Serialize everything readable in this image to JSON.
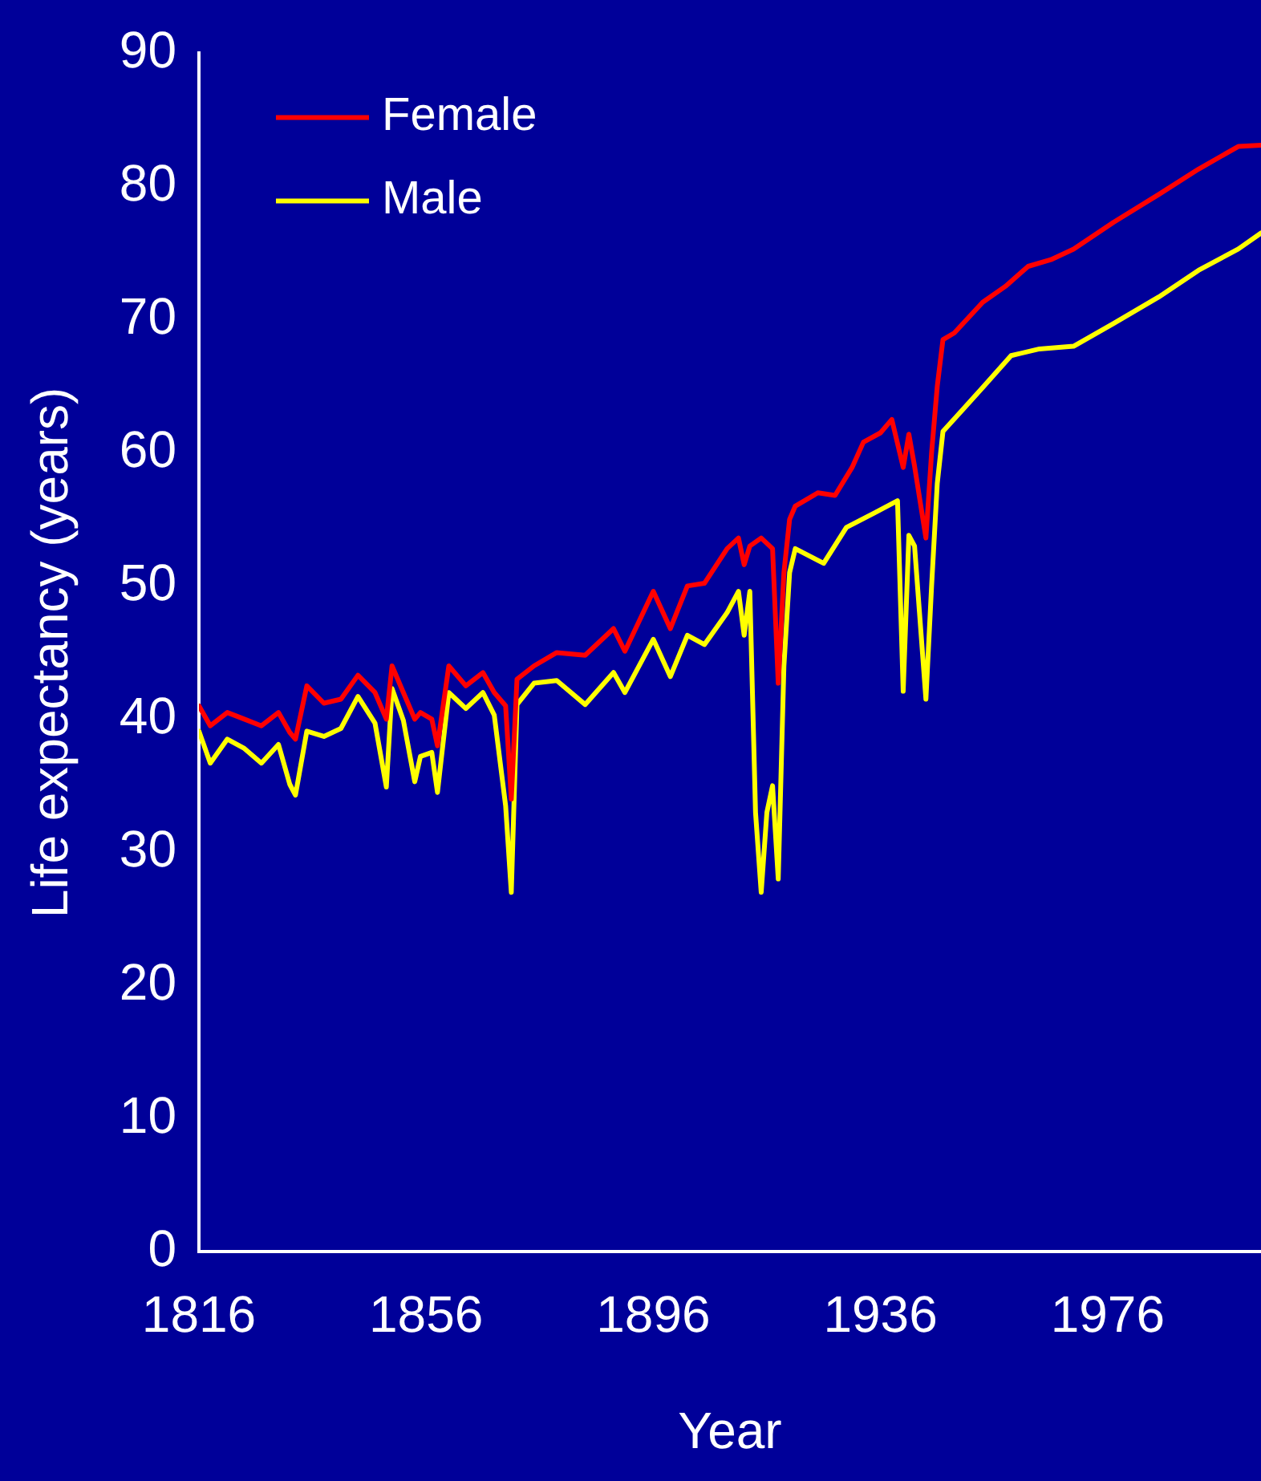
{
  "chart_data": {
    "type": "line",
    "xlabel": "Year",
    "ylabel": "Life expectancy (years)",
    "xlim": [
      1816,
      2003
    ],
    "xticks": [
      1816,
      1856,
      1896,
      1936,
      1976
    ],
    "ylim": [
      0,
      90
    ],
    "yticks": [
      0,
      10,
      20,
      30,
      40,
      50,
      60,
      70,
      80,
      90
    ],
    "legend": "top left",
    "marker": "none",
    "line_style": "solid",
    "series": [
      {
        "name": "Female",
        "color": "#ff0000",
        "x": [
          1816,
          1818,
          1821,
          1824,
          1827,
          1830,
          1832,
          1833,
          1835,
          1838,
          1841,
          1844,
          1847,
          1849,
          1850,
          1852,
          1854,
          1855,
          1857,
          1858,
          1860,
          1863,
          1866,
          1868,
          1870,
          1871,
          1872,
          1875,
          1879,
          1884,
          1889,
          1891,
          1896,
          1899,
          1902,
          1905,
          1909,
          1911,
          1912,
          1913,
          1915,
          1917,
          1918,
          1919,
          1920,
          1921,
          1925,
          1928,
          1931,
          1933,
          1936,
          1938,
          1940,
          1941,
          1942,
          1944,
          1945,
          1946,
          1947,
          1949,
          1954,
          1958,
          1962,
          1966,
          1970,
          1977,
          1985,
          1992,
          1999,
          2003
        ],
        "values": [
          41,
          39.5,
          40.5,
          40,
          39.5,
          40.5,
          39,
          38.5,
          42.5,
          41.2,
          41.5,
          43.3,
          42,
          40,
          44,
          42,
          40,
          40.5,
          40,
          38,
          44,
          42.5,
          43.5,
          42,
          41,
          34,
          43,
          44,
          45,
          44.8,
          46.8,
          45.1,
          49.6,
          46.8,
          50,
          50.2,
          52.8,
          53.6,
          51.6,
          53,
          53.6,
          52.8,
          42.7,
          51,
          55,
          56,
          57,
          56.8,
          58.9,
          60.8,
          61.5,
          62.5,
          58.9,
          61.4,
          59,
          53.6,
          60,
          65,
          68.5,
          69,
          71.3,
          72.5,
          74,
          74.5,
          75.3,
          77.3,
          79.4,
          81.3,
          83,
          83.1
        ]
      },
      {
        "name": "Male",
        "color": "#ffff00",
        "x": [
          1816,
          1818,
          1821,
          1824,
          1827,
          1830,
          1832,
          1833,
          1835,
          1838,
          1841,
          1844,
          1847,
          1849,
          1850,
          1852,
          1854,
          1855,
          1857,
          1858,
          1860,
          1863,
          1866,
          1868,
          1870,
          1871,
          1872,
          1875,
          1879,
          1884,
          1889,
          1891,
          1896,
          1899,
          1902,
          1905,
          1909,
          1911,
          1912,
          1913,
          1914,
          1915,
          1916,
          1917,
          1918,
          1919,
          1920,
          1921,
          1926,
          1930,
          1935,
          1939,
          1940,
          1941,
          1942,
          1944,
          1945,
          1946,
          1947,
          1954,
          1959,
          1964,
          1970,
          1977,
          1985,
          1992,
          1999,
          2003
        ],
        "values": [
          39.1,
          36.7,
          38.5,
          37.8,
          36.7,
          38.1,
          35.1,
          34.3,
          39.1,
          38.7,
          39.3,
          41.7,
          39.7,
          34.9,
          42.3,
          39.9,
          35.3,
          37.2,
          37.5,
          34.5,
          42,
          40.8,
          42,
          40.3,
          33.5,
          27,
          41.1,
          42.7,
          42.9,
          41.1,
          43.5,
          42,
          46,
          43.2,
          46.3,
          45.6,
          48,
          49.6,
          46.3,
          49.6,
          33,
          27,
          33,
          35,
          28,
          44,
          51,
          52.8,
          51.7,
          54.4,
          55.5,
          56.4,
          42.1,
          53.8,
          53,
          41.5,
          50,
          57.7,
          61.6,
          64.9,
          67.3,
          67.8,
          68,
          69.7,
          71.7,
          73.7,
          75.3,
          76.5
        ]
      }
    ]
  }
}
